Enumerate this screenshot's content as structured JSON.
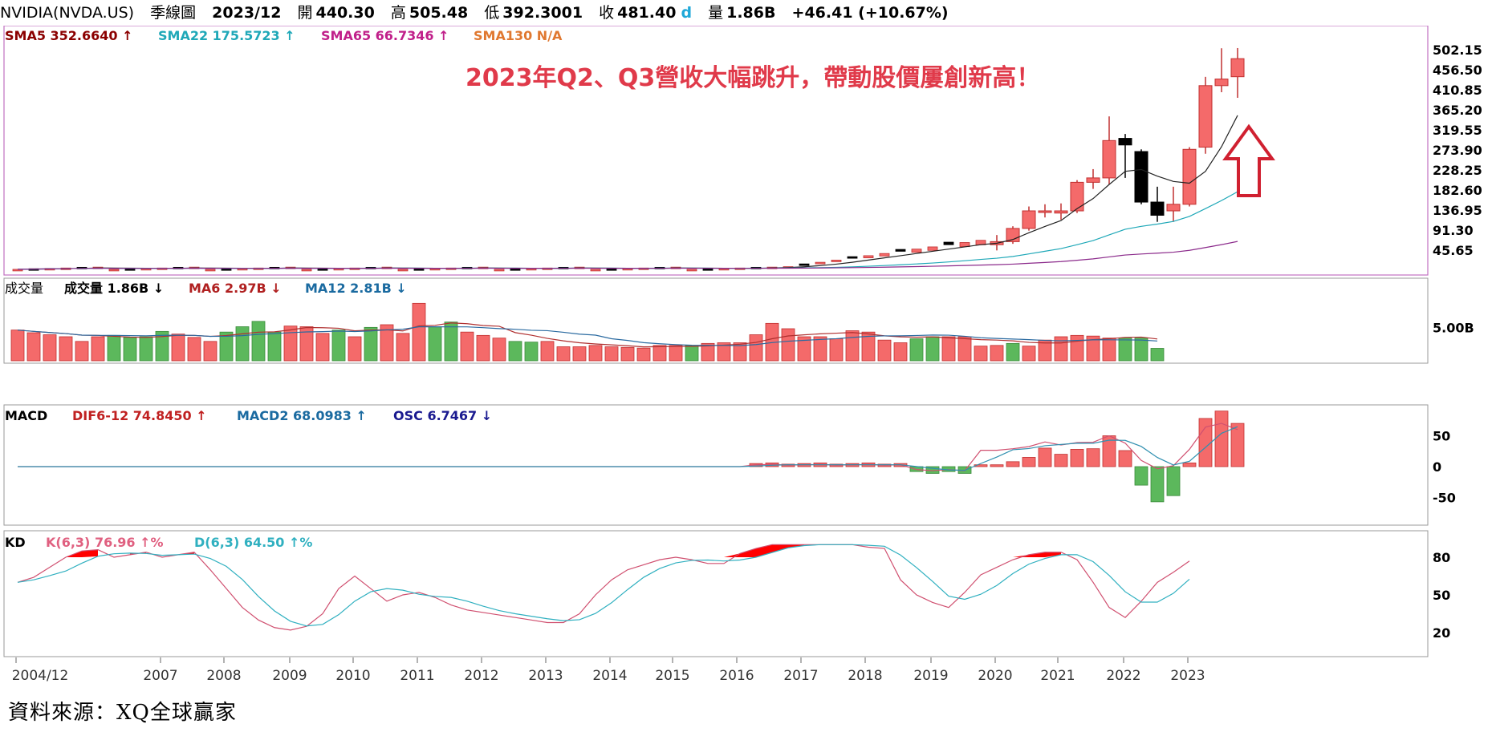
{
  "header": {
    "symbol": "NVIDIA(NVDA.US)",
    "chart_kind": "季線圖",
    "date": "2023/12",
    "open_label": "開",
    "open": "440.30",
    "high_label": "高",
    "high": "505.48",
    "low_label": "低",
    "low": "392.3001",
    "close_label": "收",
    "close": "481.40",
    "close_flag": "d",
    "volume_label": "量",
    "volume": "1.86B",
    "change": "+46.41 (+10.67%)"
  },
  "colors": {
    "up": "#f46a6a",
    "down": "#000000",
    "vol_up": "#f46a6a",
    "vol_down": "#5cb85c",
    "sma5": "#222222",
    "sma22": "#1fa8b8",
    "sma65": "#8b2a8b",
    "ma6": "#b03030",
    "ma12": "#2a6aa0",
    "dif": "#d05070",
    "macd2": "#3090b0",
    "k": "#d05070",
    "d": "#30b0c0",
    "annotation": "#e03a4a",
    "frame": "#c070c0"
  },
  "price_panel": {
    "legend": [
      {
        "text": "SMA5 352.6640",
        "color": "#8b0000"
      },
      {
        "text": "SMA22 175.5723",
        "color": "#1fa8b8"
      },
      {
        "text": "SMA65 66.7346",
        "color": "#c0208a"
      },
      {
        "text": "SMA130 N/A",
        "color": "#e07830"
      }
    ],
    "annotation": "2023年Q2、Q3營收大幅跳升，帶動股價屢創新高！",
    "yticks": [
      "502.15",
      "456.50",
      "410.85",
      "365.20",
      "319.55",
      "273.90",
      "228.25",
      "182.60",
      "136.95",
      "91.30",
      "45.65"
    ]
  },
  "volume_panel": {
    "legend": [
      {
        "text": "成交量",
        "color": "#000000"
      },
      {
        "text": "成交量 1.86B",
        "color": "#000000"
      },
      {
        "text": "MA6 2.97B",
        "color": "#b02020"
      },
      {
        "text": "MA12 2.81B",
        "color": "#1a6aa0"
      }
    ],
    "ytick": "5.00B"
  },
  "macd_panel": {
    "legend": [
      {
        "text": "MACD",
        "color": "#000000"
      },
      {
        "text": "DIF6-12 74.8450",
        "color": "#c02020"
      },
      {
        "text": "MACD2 68.0983",
        "color": "#1a6aa0"
      },
      {
        "text": "OSC 6.7467",
        "color": "#1a1a90"
      }
    ],
    "yticks": [
      "50",
      "0",
      "-50"
    ]
  },
  "kd_panel": {
    "legend": [
      {
        "text": "KD",
        "color": "#000000"
      },
      {
        "text": "K(6,3) 76.96",
        "color": "#e06080"
      },
      {
        "text": "D(6,3) 64.50",
        "color": "#30b0c0"
      }
    ],
    "pct": "%",
    "yticks": [
      "80",
      "50",
      "20"
    ]
  },
  "x_axis": {
    "labels": [
      "2004/12",
      "2007",
      "2008",
      "2009",
      "2010",
      "2011",
      "2012",
      "2013",
      "2014",
      "2015",
      "2016",
      "2017",
      "2018",
      "2019",
      "2020",
      "2021",
      "2022",
      "2023"
    ]
  },
  "footer": {
    "source": "資料來源：XQ全球贏家"
  },
  "chart_data": {
    "type": "candlestick",
    "period": "quarterly",
    "recent_quarters": {
      "x": [
        "2020Q1",
        "2020Q2",
        "2020Q3",
        "2020Q4",
        "2021Q1",
        "2021Q2",
        "2021Q3",
        "2021Q4",
        "2022Q1",
        "2022Q2",
        "2022Q3",
        "2022Q4",
        "2023Q1",
        "2023Q2",
        "2023Q3",
        "2023Q4"
      ],
      "open": [
        58,
        65,
        95,
        135,
        130,
        135,
        200,
        210,
        300,
        270,
        155,
        135,
        150,
        280,
        420,
        440.3
      ],
      "high": [
        80,
        100,
        145,
        150,
        152,
        205,
        230,
        350,
        310,
        275,
        190,
        190,
        280,
        440,
        505,
        505.48
      ],
      "low": [
        45,
        60,
        90,
        120,
        115,
        130,
        185,
        195,
        210,
        150,
        110,
        110,
        145,
        265,
        405,
        392.3001
      ],
      "close": [
        65,
        95,
        135,
        135,
        135,
        200,
        210,
        295,
        285,
        155,
        125,
        150,
        275,
        420,
        435,
        481.4
      ]
    },
    "last_values": {
      "SMA5": 352.664,
      "SMA22": 175.5723,
      "SMA65": 66.7346,
      "SMA130": "N/A",
      "volume": "1.86B",
      "MA6": "2.97B",
      "MA12": "2.81B",
      "DIF6-12": 74.845,
      "MACD2": 68.0983,
      "OSC": 6.7467,
      "K(6,3)": 76.96,
      "D(6,3)": 64.5
    }
  }
}
